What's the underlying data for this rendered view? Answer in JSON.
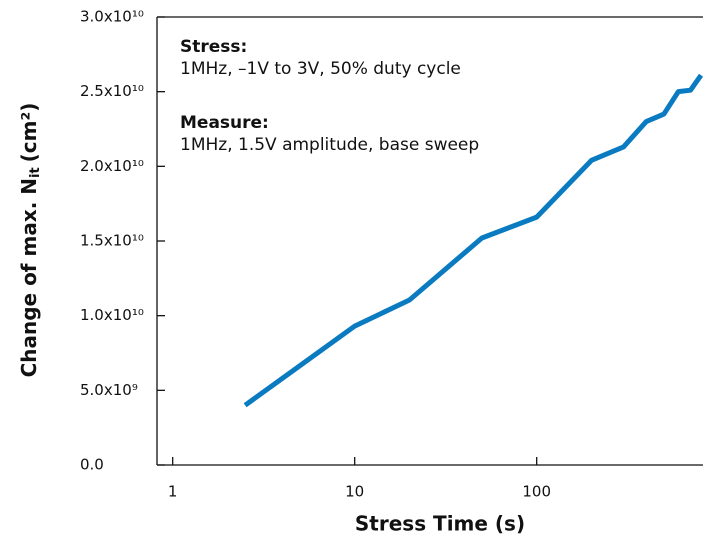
{
  "chart_data": {
    "type": "line",
    "x": [
      2.5,
      10,
      20,
      50,
      100,
      200,
      300,
      400,
      500,
      600,
      700,
      800
    ],
    "series": [
      {
        "color": "#0a7bc1",
        "values": [
          4000000000.0,
          9300000000.0,
          11050000000.0,
          15200000000.0,
          16600000000.0,
          20400000000.0,
          21300000000.0,
          23000000000.0,
          23500000000.0,
          25000000000.0,
          25100000000.0,
          26100000000.0
        ]
      }
    ],
    "xlabel": "Stress Time (s)",
    "ylabel": {
      "text": "Change of max. N",
      "sub": "it",
      "unit": "(cm²)"
    },
    "annotations": [
      {
        "head": "Stress:",
        "body": "1MHz, –1V to 3V, 50% duty cycle"
      },
      {
        "head": "Measure:",
        "body": "1MHz, 1.5V amplitude, base sweep"
      }
    ],
    "xscale": "log",
    "xlim": [
      0.82,
      820
    ],
    "xticks": [
      1,
      10,
      100
    ],
    "ylim": [
      0,
      30000000000.0
    ],
    "yticks": [
      {
        "value": 0,
        "label": "0.0"
      },
      {
        "value": 5000000000.0,
        "label": "5.0x10⁹"
      },
      {
        "value": 10000000000.0,
        "label": "1.0x10¹⁰"
      },
      {
        "value": 15000000000.0,
        "label": "1.5x10¹⁰"
      },
      {
        "value": 20000000000.0,
        "label": "2.0x10¹⁰"
      },
      {
        "value": 25000000000.0,
        "label": "2.5x10¹⁰"
      },
      {
        "value": 30000000000.0,
        "label": "3.0x10¹⁰"
      }
    ]
  }
}
